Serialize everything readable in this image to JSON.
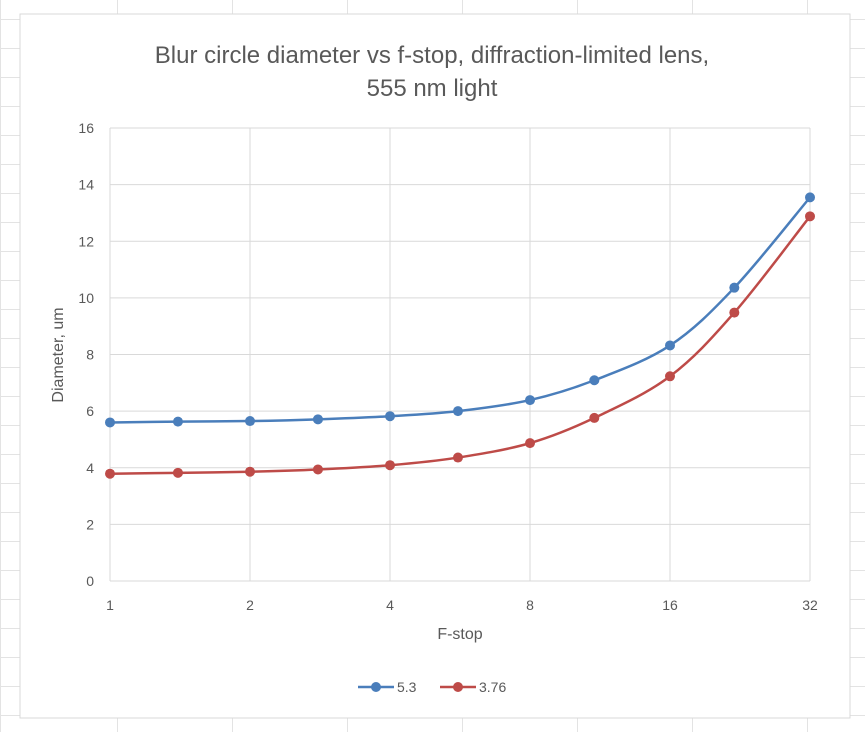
{
  "chart_data": {
    "type": "line",
    "title_lines": [
      "Blur circle diameter vs f-stop, diffraction-limited lens,",
      "555 nm light"
    ],
    "xlabel": "F-stop",
    "ylabel": "Diameter, um",
    "x_scale": "log2",
    "xlim": [
      1,
      32
    ],
    "ylim": [
      0,
      16
    ],
    "x_ticks": [
      "1",
      "2",
      "4",
      "8",
      "16",
      "32"
    ],
    "y_ticks": [
      "0",
      "2",
      "4",
      "6",
      "8",
      "10",
      "12",
      "14",
      "16"
    ],
    "grid": true,
    "legend_position": "bottom",
    "x": [
      1,
      1.4,
      2,
      2.8,
      4,
      5.6,
      8,
      11,
      16,
      22,
      32
    ],
    "series": [
      {
        "name": "5.3",
        "color": "#4a7ebb",
        "values": [
          5.6,
          5.63,
          5.65,
          5.71,
          5.82,
          6.0,
          6.39,
          7.09,
          8.32,
          10.36,
          13.55
        ]
      },
      {
        "name": "3.76",
        "color": "#be4b48",
        "values": [
          3.79,
          3.82,
          3.86,
          3.94,
          4.09,
          4.36,
          4.87,
          5.76,
          7.23,
          9.48,
          12.88
        ]
      }
    ]
  }
}
